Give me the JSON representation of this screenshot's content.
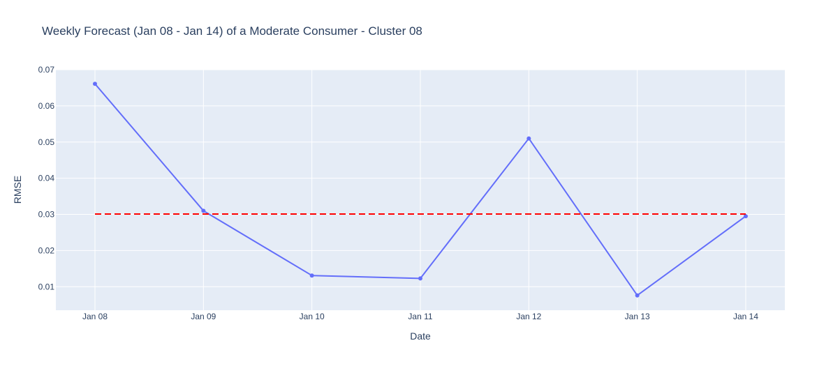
{
  "chart_data": {
    "type": "line",
    "title": "Weekly Forecast (Jan 08 - Jan 14) of a Moderate Consumer - Cluster 08",
    "xlabel": "Date",
    "ylabel": "RMSE",
    "categories": [
      "Jan 08",
      "Jan 09",
      "Jan 10",
      "Jan 11",
      "Jan 12",
      "Jan 13",
      "Jan 14"
    ],
    "series": [
      {
        "values": [
          0.0661,
          0.031,
          0.0131,
          0.0123,
          0.051,
          0.0076,
          0.0295
        ],
        "color": "#636efa",
        "mode": "lines+markers"
      },
      {
        "values": [
          0.0301,
          0.0301,
          0.0301,
          0.0301,
          0.0301,
          0.0301,
          0.0301
        ],
        "color": "#ff0000",
        "dash": "dashed",
        "mode": "lines"
      }
    ],
    "ylim": [
      0.0035,
      0.07
    ],
    "yticks": [
      0.01,
      0.02,
      0.03,
      0.04,
      0.05,
      0.06,
      0.07
    ],
    "ytick_labels": [
      "0.01",
      "0.02",
      "0.03",
      "0.04",
      "0.05",
      "0.06",
      "0.07"
    ],
    "grid": true,
    "plot_background": "#e5ecf6",
    "grid_color": "#ffffff",
    "text_color": "#2a3f5f"
  }
}
